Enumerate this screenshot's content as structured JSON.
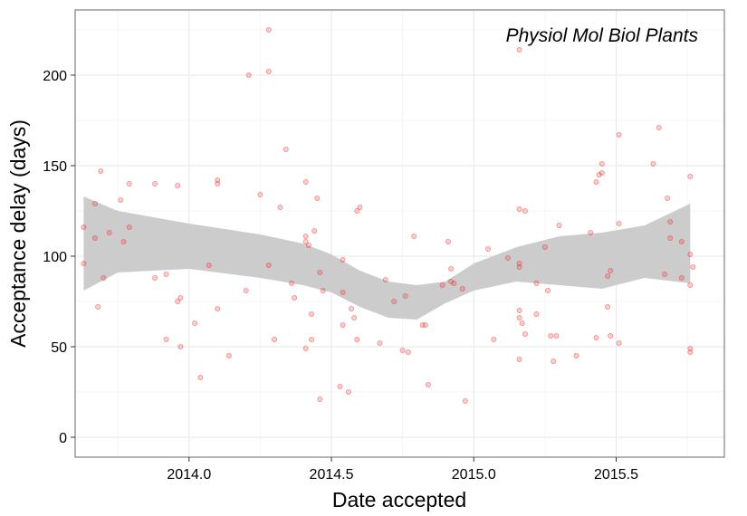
{
  "chart_data": {
    "type": "scatter",
    "title": "",
    "annotation": "Physiol Mol Biol Plants",
    "xlabel": "Date accepted",
    "ylabel": "Acceptance delay (days)",
    "xlim": [
      2013.6,
      2015.88
    ],
    "ylim": [
      -11,
      236
    ],
    "xticks": [
      2014.0,
      2014.5,
      2015.0,
      2015.5
    ],
    "xtick_labels": [
      "2014.0",
      "2014.5",
      "2015.0",
      "2015.5"
    ],
    "yticks": [
      0,
      50,
      100,
      150,
      200
    ],
    "ytick_labels": [
      "0",
      "50",
      "100",
      "150",
      "200"
    ],
    "grid": true,
    "legend": "none",
    "colors": {
      "points": "#e8231f",
      "band": "#cccccc",
      "grid_major": "#ebebeb",
      "grid_minor": "#f5f5f5",
      "panel_border": "#808080"
    },
    "series": [
      {
        "type": "scatter",
        "points": [
          [
            2013.63,
            116
          ],
          [
            2013.63,
            96
          ],
          [
            2013.67,
            129
          ],
          [
            2013.67,
            110
          ],
          [
            2013.68,
            72
          ],
          [
            2013.69,
            147
          ],
          [
            2013.7,
            88
          ],
          [
            2013.72,
            113
          ],
          [
            2013.76,
            131
          ],
          [
            2013.77,
            108
          ],
          [
            2013.79,
            140
          ],
          [
            2013.79,
            116
          ],
          [
            2013.88,
            140
          ],
          [
            2013.88,
            88
          ],
          [
            2013.92,
            90
          ],
          [
            2013.92,
            54
          ],
          [
            2013.96,
            139
          ],
          [
            2013.96,
            75
          ],
          [
            2013.97,
            77
          ],
          [
            2013.97,
            50
          ],
          [
            2014.02,
            63
          ],
          [
            2014.04,
            33
          ],
          [
            2014.07,
            95
          ],
          [
            2014.1,
            142
          ],
          [
            2014.1,
            140
          ],
          [
            2014.1,
            71
          ],
          [
            2014.14,
            45
          ],
          [
            2014.2,
            81
          ],
          [
            2014.21,
            200
          ],
          [
            2014.25,
            134
          ],
          [
            2014.28,
            225
          ],
          [
            2014.28,
            202
          ],
          [
            2014.28,
            95
          ],
          [
            2014.3,
            54
          ],
          [
            2014.32,
            127
          ],
          [
            2014.34,
            159
          ],
          [
            2014.36,
            85
          ],
          [
            2014.37,
            77
          ],
          [
            2014.41,
            141
          ],
          [
            2014.41,
            111
          ],
          [
            2014.41,
            108
          ],
          [
            2014.41,
            49
          ],
          [
            2014.42,
            106
          ],
          [
            2014.43,
            68
          ],
          [
            2014.43,
            54
          ],
          [
            2014.44,
            114
          ],
          [
            2014.45,
            132
          ],
          [
            2014.46,
            21
          ],
          [
            2014.46,
            91
          ],
          [
            2014.47,
            81
          ],
          [
            2014.53,
            28
          ],
          [
            2014.54,
            98
          ],
          [
            2014.54,
            80
          ],
          [
            2014.54,
            62
          ],
          [
            2014.56,
            25
          ],
          [
            2014.57,
            71
          ],
          [
            2014.58,
            66
          ],
          [
            2014.59,
            125
          ],
          [
            2014.59,
            54
          ],
          [
            2014.6,
            127
          ],
          [
            2014.67,
            52
          ],
          [
            2014.69,
            87
          ],
          [
            2014.72,
            75
          ],
          [
            2014.75,
            48
          ],
          [
            2014.76,
            78
          ],
          [
            2014.77,
            47
          ],
          [
            2014.79,
            111
          ],
          [
            2014.82,
            62
          ],
          [
            2014.83,
            62
          ],
          [
            2014.84,
            29
          ],
          [
            2014.89,
            84
          ],
          [
            2014.91,
            108
          ],
          [
            2014.92,
            93
          ],
          [
            2014.92,
            86
          ],
          [
            2014.93,
            85
          ],
          [
            2014.96,
            82
          ],
          [
            2014.97,
            20
          ],
          [
            2015.05,
            104
          ],
          [
            2015.07,
            54
          ],
          [
            2015.12,
            99
          ],
          [
            2015.16,
            214
          ],
          [
            2015.16,
            126
          ],
          [
            2015.16,
            96
          ],
          [
            2015.16,
            94
          ],
          [
            2015.16,
            70
          ],
          [
            2015.16,
            66
          ],
          [
            2015.16,
            43
          ],
          [
            2015.17,
            63
          ],
          [
            2015.18,
            125
          ],
          [
            2015.18,
            57
          ],
          [
            2015.22,
            85
          ],
          [
            2015.22,
            68
          ],
          [
            2015.25,
            105
          ],
          [
            2015.26,
            81
          ],
          [
            2015.27,
            56
          ],
          [
            2015.28,
            42
          ],
          [
            2015.29,
            56
          ],
          [
            2015.3,
            117
          ],
          [
            2015.36,
            45
          ],
          [
            2015.41,
            113
          ],
          [
            2015.43,
            55
          ],
          [
            2015.43,
            141
          ],
          [
            2015.44,
            145
          ],
          [
            2015.45,
            151
          ],
          [
            2015.45,
            146
          ],
          [
            2015.47,
            89
          ],
          [
            2015.47,
            72
          ],
          [
            2015.48,
            56
          ],
          [
            2015.48,
            92
          ],
          [
            2015.51,
            167
          ],
          [
            2015.51,
            118
          ],
          [
            2015.51,
            52
          ],
          [
            2015.63,
            151
          ],
          [
            2015.65,
            171
          ],
          [
            2015.67,
            90
          ],
          [
            2015.68,
            132
          ],
          [
            2015.69,
            119
          ],
          [
            2015.69,
            110
          ],
          [
            2015.73,
            88
          ],
          [
            2015.73,
            108
          ],
          [
            2015.76,
            144
          ],
          [
            2015.76,
            101
          ],
          [
            2015.76,
            84
          ],
          [
            2015.76,
            49
          ],
          [
            2015.76,
            47
          ],
          [
            2015.77,
            94
          ]
        ]
      },
      {
        "type": "band",
        "x": [
          2013.63,
          2013.75,
          2014.0,
          2014.25,
          2014.4,
          2014.5,
          2014.6,
          2014.7,
          2014.8,
          2014.9,
          2015.0,
          2015.15,
          2015.3,
          2015.45,
          2015.6,
          2015.76
        ],
        "lower": [
          81,
          91,
          93,
          88,
          84,
          80,
          72,
          66,
          65,
          74,
          81,
          86,
          84,
          82,
          88,
          85
        ],
        "upper": [
          133,
          125,
          118,
          112,
          107,
          101,
          92,
          86,
          84,
          86,
          96,
          105,
          111,
          113,
          117,
          129
        ]
      }
    ]
  }
}
